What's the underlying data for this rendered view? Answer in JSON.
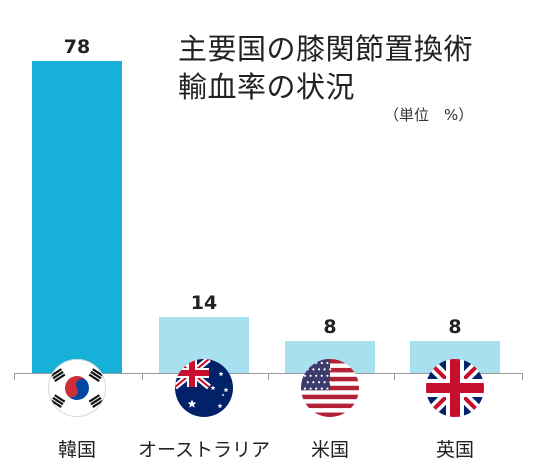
{
  "chart_data": {
    "type": "bar",
    "title_lines": [
      "主要国の膝関節置換術",
      "輸血率の状況"
    ],
    "unit": "（単位　%）",
    "categories": [
      "韓国",
      "オーストラリア",
      "米国",
      "英国"
    ],
    "values": [
      78,
      14,
      8,
      8
    ],
    "value_labels": [
      "78",
      "14",
      "8",
      "8"
    ],
    "flag_icons": [
      "south-korea-flag-icon",
      "australia-flag-icon",
      "usa-flag-icon",
      "uk-flag-icon"
    ],
    "ylim": [
      0,
      78
    ],
    "grid": false,
    "colors": {
      "highlight": "#17b0d8",
      "bar": "#a8e0f0",
      "axis": "#9a9a9a"
    }
  }
}
